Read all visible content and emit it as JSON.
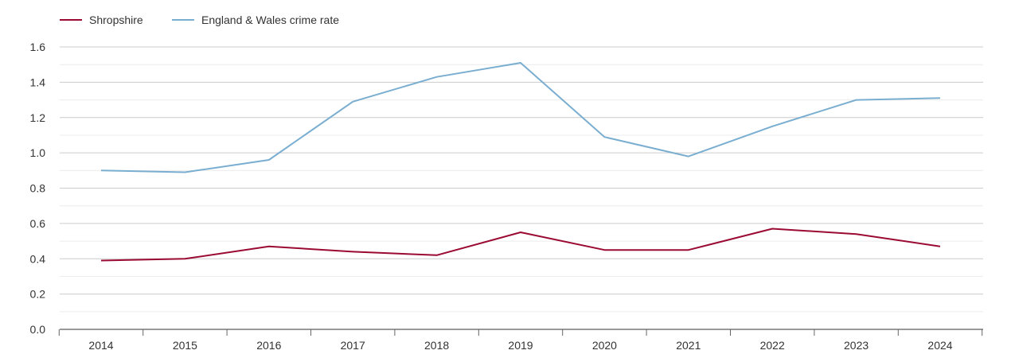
{
  "chart_data": {
    "type": "line",
    "title": "",
    "xlabel": "",
    "ylabel": "",
    "categories": [
      "2014",
      "2015",
      "2016",
      "2017",
      "2018",
      "2019",
      "2020",
      "2021",
      "2022",
      "2023",
      "2024"
    ],
    "ylim": [
      0,
      1.6
    ],
    "yticks": [
      "0.0",
      "0.2",
      "0.4",
      "0.6",
      "0.8",
      "1.0",
      "1.2",
      "1.4",
      "1.6"
    ],
    "grid": true,
    "legend_position": "top-left",
    "series": [
      {
        "name": "Shropshire",
        "color": "#9b0a33",
        "values": [
          0.39,
          0.4,
          0.47,
          0.44,
          0.42,
          0.55,
          0.45,
          0.45,
          0.57,
          0.54,
          0.47
        ]
      },
      {
        "name": "England & Wales crime rate",
        "color": "#7aaed0",
        "values": [
          0.9,
          0.89,
          0.96,
          1.29,
          1.43,
          1.51,
          1.09,
          0.98,
          1.15,
          1.3,
          1.31
        ]
      }
    ]
  }
}
